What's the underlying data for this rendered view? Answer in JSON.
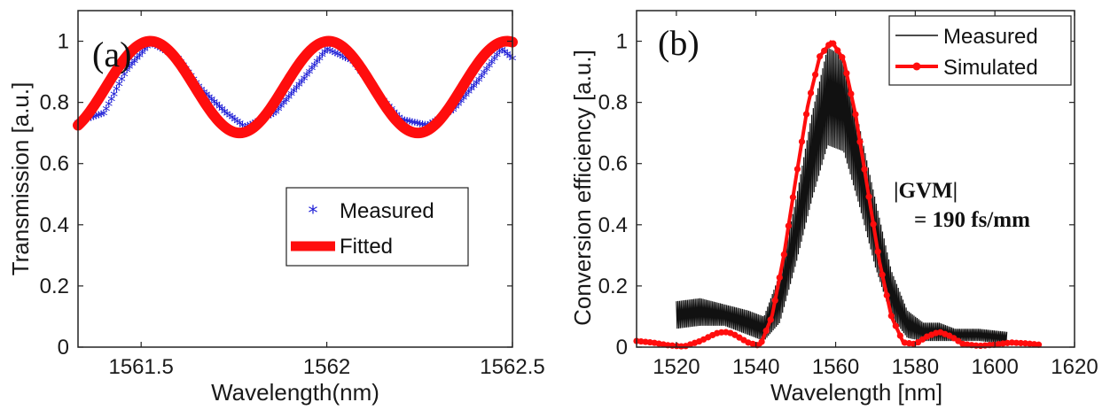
{
  "chart_data": [
    {
      "panel": "(a)",
      "type": "scatter",
      "xlabel": "Wavelength(nm)",
      "ylabel": "Transmission [a.u.]",
      "xlim": [
        1561.33,
        1562.5
      ],
      "ylim": [
        0,
        1.1
      ],
      "xticks": [
        1561.5,
        1562,
        1562.5
      ],
      "xtick_labels": [
        "1561.5",
        "1562",
        "1562.5"
      ],
      "yticks": [
        0,
        0.2,
        0.4,
        0.6,
        0.8,
        1
      ],
      "ytick_labels": [
        "0",
        "0.2",
        "0.4",
        "0.6",
        "0.8",
        "1"
      ],
      "legend_position": "lower-right",
      "series": [
        {
          "name": "Measured",
          "color": "#1f1fd6",
          "style": "asterisk-markers",
          "x": [
            1561.33,
            1561.4,
            1561.46,
            1561.525,
            1561.6,
            1561.66,
            1561.73,
            1561.78,
            1561.86,
            1561.93,
            1562.0,
            1562.07,
            1562.14,
            1562.2,
            1562.27,
            1562.34,
            1562.41,
            1562.47,
            1562.5
          ],
          "y": [
            0.73,
            0.76,
            0.9,
            0.99,
            0.94,
            0.84,
            0.76,
            0.715,
            0.76,
            0.86,
            0.97,
            0.93,
            0.82,
            0.74,
            0.72,
            0.77,
            0.87,
            0.97,
            0.94
          ]
        },
        {
          "name": "Fitted",
          "color": "#ff0d0d",
          "style": "thick-line",
          "model": {
            "offset": 0.85,
            "amplitude": 0.15,
            "period_nm": 0.48,
            "peak_nm": 1561.525
          }
        }
      ]
    },
    {
      "panel": "(b)",
      "type": "line",
      "xlabel": "Wavelength [nm]",
      "ylabel": "Conversion efficiency [a.u.]",
      "xlim": [
        1510,
        1620
      ],
      "ylim": [
        0,
        1.1
      ],
      "xticks": [
        1520,
        1540,
        1560,
        1580,
        1600,
        1620
      ],
      "xtick_labels": [
        "1520",
        "1540",
        "1560",
        "1580",
        "1600",
        "1620"
      ],
      "yticks": [
        0,
        0.2,
        0.4,
        0.6,
        0.8,
        1
      ],
      "ytick_labels": [
        "0",
        "0.2",
        "0.4",
        "0.6",
        "0.8",
        "1"
      ],
      "legend_position": "top-right",
      "annotation": [
        "|GVM|",
        "= 190 fs/mm"
      ],
      "series": [
        {
          "name": "Measured",
          "color": "#111111",
          "style": "thin-noisy-line",
          "x": [
            1520,
            1526,
            1532,
            1538,
            1542,
            1546,
            1550,
            1554,
            1558,
            1562,
            1566,
            1570,
            1574,
            1578,
            1582,
            1586,
            1590,
            1596,
            1603
          ],
          "y": [
            0.11,
            0.12,
            0.11,
            0.08,
            0.06,
            0.16,
            0.37,
            0.62,
            0.86,
            0.82,
            0.6,
            0.37,
            0.17,
            0.07,
            0.05,
            0.05,
            0.04,
            0.04,
            0.03
          ],
          "y_max": [
            0.15,
            0.16,
            0.14,
            0.12,
            0.1,
            0.24,
            0.48,
            0.76,
            0.98,
            0.95,
            0.72,
            0.48,
            0.25,
            0.12,
            0.08,
            0.08,
            0.06,
            0.06,
            0.05
          ],
          "y_min": [
            0.06,
            0.07,
            0.07,
            0.04,
            0.02,
            0.08,
            0.27,
            0.48,
            0.66,
            0.64,
            0.46,
            0.26,
            0.1,
            0.03,
            0.02,
            0.02,
            0.02,
            0.02,
            0.01
          ]
        },
        {
          "name": "Simulated",
          "color": "#ff0d0d",
          "style": "line-with-dot-markers",
          "x": [
            1510,
            1514,
            1518,
            1522,
            1526,
            1530,
            1532,
            1534,
            1538,
            1541,
            1544,
            1547,
            1550,
            1553,
            1556,
            1559,
            1562,
            1565,
            1568,
            1571,
            1574,
            1577,
            1580,
            1583,
            1586,
            1589,
            1592,
            1596,
            1600,
            1604,
            1608,
            1611
          ],
          "y": [
            0.02,
            0.015,
            0.006,
            0.002,
            0.02,
            0.045,
            0.05,
            0.045,
            0.015,
            0.004,
            0.1,
            0.3,
            0.55,
            0.79,
            0.95,
            1.0,
            0.94,
            0.76,
            0.52,
            0.28,
            0.1,
            0.015,
            0.01,
            0.035,
            0.05,
            0.035,
            0.01,
            0.004,
            0.008,
            0.015,
            0.012,
            0.008
          ]
        }
      ]
    }
  ]
}
